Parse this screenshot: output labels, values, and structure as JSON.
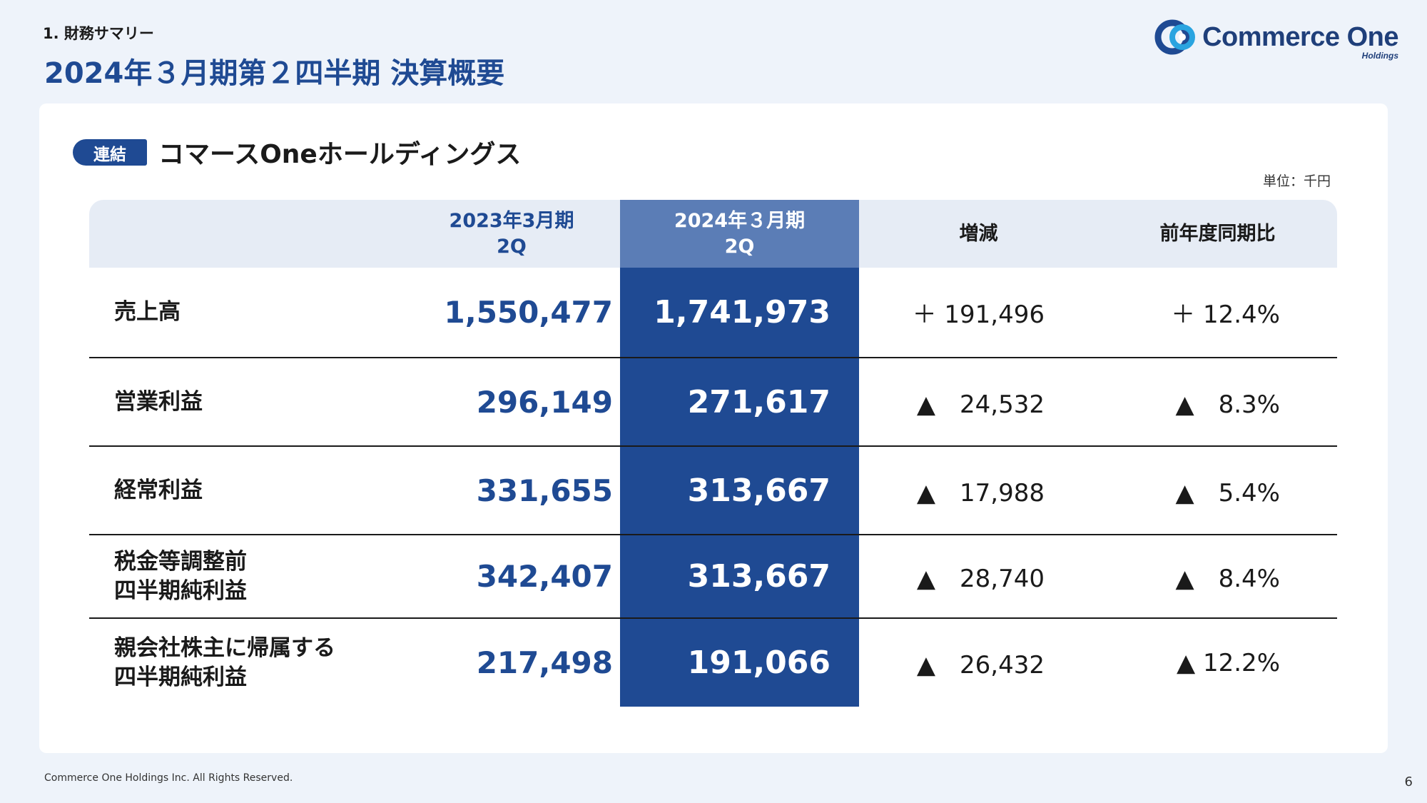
{
  "header": {
    "section_label": "1. 財務サマリー",
    "title": "2024年３月期第２四半期 決算概要"
  },
  "logo": {
    "name": "Commerce One",
    "sub": "Holdings",
    "colors": {
      "primary": "#1f4a93",
      "accent": "#2aa4e0"
    }
  },
  "card": {
    "tag": "連結",
    "company": "コマースOneホールディングス",
    "unit": "単位：千円"
  },
  "table": {
    "headers": {
      "prev": [
        "2023年3月期",
        "2Q"
      ],
      "cur": [
        "2024年３月期",
        "2Q"
      ],
      "delta": "増減",
      "ratio": "前年度同期比"
    },
    "rows": [
      {
        "label": [
          "売上高"
        ],
        "prev": "1,550,477",
        "cur": "1,741,973",
        "delta": "＋ 191,496",
        "ratio": "＋ 12.4%"
      },
      {
        "label": [
          "営業利益"
        ],
        "prev": "296,149",
        "cur": "271,617",
        "delta": "▲　24,532",
        "ratio": "▲　8.3%"
      },
      {
        "label": [
          "経常利益"
        ],
        "prev": "331,655",
        "cur": "313,667",
        "delta": "▲　17,988",
        "ratio": "▲　5.4%"
      },
      {
        "label": [
          "税金等調整前",
          "四半期純利益"
        ],
        "prev": "342,407",
        "cur": "313,667",
        "delta": "▲　28,740",
        "ratio": "▲　8.4%"
      },
      {
        "label": [
          "親会社株主に帰属する",
          "四半期純利益"
        ],
        "prev": "217,498",
        "cur": "191,066",
        "delta": "▲　26,432",
        "ratio": "▲ 12.2%"
      }
    ]
  },
  "footer": {
    "copyright": "Commerce One Holdings Inc. All Rights Reserved.",
    "page": "6"
  }
}
